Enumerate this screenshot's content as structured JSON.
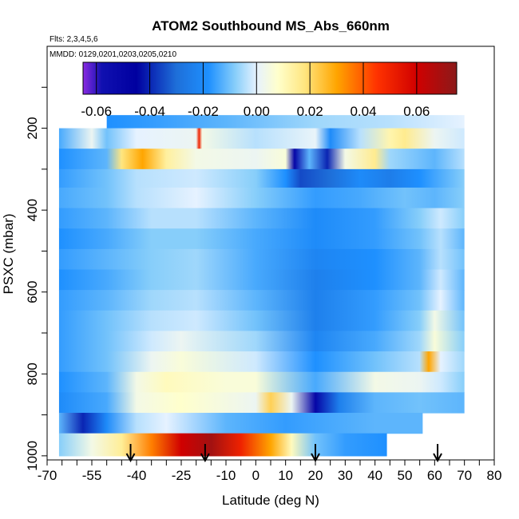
{
  "chart_data": {
    "type": "heatmap",
    "title": "ATOM2 Southbound MS_Abs_660nm",
    "flights_label": "Flts: 2,3,4,5,6",
    "dates_label": "MMDD: 0129,0201,0203,0205,0210",
    "xlabel": "Latitude (deg N)",
    "ylabel": "PSXC (mbar)",
    "xlim": [
      -70,
      80
    ],
    "ylim": [
      1010,
      0
    ],
    "x_ticks": [
      -70,
      -55,
      -40,
      -25,
      -10,
      0,
      10,
      20,
      30,
      40,
      50,
      60,
      70,
      80
    ],
    "x_tick_labels": [
      "-70",
      "-55",
      "-40",
      "-25",
      "-10",
      "0",
      "10",
      "20",
      "30",
      "40",
      "50",
      "60",
      "70",
      "80"
    ],
    "y_ticks": [
      200,
      400,
      600,
      800,
      1000
    ],
    "y_tick_labels": [
      "200",
      "400",
      "600",
      "800",
      "1000"
    ],
    "colorbar": {
      "range": [
        -0.065,
        0.075
      ],
      "ticks": [
        -0.06,
        -0.04,
        -0.02,
        0.0,
        0.02,
        0.04,
        0.06
      ],
      "tick_labels": [
        "-0.06",
        "-0.04",
        "-0.02",
        "0.00",
        "0.02",
        "0.04",
        "0.06"
      ],
      "stops": [
        {
          "v": -0.065,
          "c": "#8a2be2"
        },
        {
          "v": -0.058,
          "c": "#1010b0"
        },
        {
          "v": -0.045,
          "c": "#0000a0"
        },
        {
          "v": -0.03,
          "c": "#1e6fd9"
        },
        {
          "v": -0.018,
          "c": "#1e90ff"
        },
        {
          "v": -0.008,
          "c": "#87cefa"
        },
        {
          "v": 0.0,
          "c": "#e6f2ff"
        },
        {
          "v": 0.008,
          "c": "#ffffcc"
        },
        {
          "v": 0.018,
          "c": "#ffe680"
        },
        {
          "v": 0.03,
          "c": "#ffa500"
        },
        {
          "v": 0.045,
          "c": "#ff3300"
        },
        {
          "v": 0.06,
          "c": "#d00000"
        },
        {
          "v": 0.075,
          "c": "#8b1a1a"
        }
      ]
    },
    "rows": [
      {
        "p_top": 168,
        "p_bot": 200,
        "x0": -50,
        "x1": 70,
        "seg": [
          [
            -50,
            -0.018
          ],
          [
            -35,
            -0.016
          ],
          [
            -10,
            -0.012
          ],
          [
            20,
            -0.006
          ],
          [
            45,
            -0.004
          ],
          [
            70,
            0.0
          ]
        ]
      },
      {
        "p_top": 200,
        "p_bot": 250,
        "x0": -66,
        "x1": 70,
        "seg": [
          [
            -66,
            -0.014
          ],
          [
            -55,
            0.002
          ],
          [
            -50,
            -0.01
          ],
          [
            -40,
            0.0
          ],
          [
            -20,
            0.002
          ],
          [
            -19,
            0.05
          ],
          [
            -18,
            0.004
          ],
          [
            0,
            -0.004
          ],
          [
            20,
            0.001
          ],
          [
            25,
            -0.02
          ],
          [
            35,
            -0.004
          ],
          [
            45,
            0.012
          ],
          [
            50,
            0.016
          ],
          [
            60,
            0.002
          ],
          [
            70,
            -0.002
          ]
        ]
      },
      {
        "p_top": 250,
        "p_bot": 300,
        "x0": -66,
        "x1": 70,
        "seg": [
          [
            -66,
            -0.018
          ],
          [
            -50,
            -0.012
          ],
          [
            -45,
            0.018
          ],
          [
            -38,
            0.03
          ],
          [
            -30,
            0.014
          ],
          [
            -20,
            0.004
          ],
          [
            0,
            0.002
          ],
          [
            10,
            0.006
          ],
          [
            13,
            -0.05
          ],
          [
            18,
            -0.012
          ],
          [
            24,
            -0.04
          ],
          [
            30,
            0.004
          ],
          [
            40,
            0.016
          ],
          [
            45,
            -0.006
          ],
          [
            60,
            -0.012
          ],
          [
            70,
            -0.004
          ]
        ]
      },
      {
        "p_top": 300,
        "p_bot": 345,
        "x0": -66,
        "x1": 70,
        "seg": [
          [
            -66,
            -0.016
          ],
          [
            -50,
            -0.01
          ],
          [
            -40,
            -0.004
          ],
          [
            -20,
            -0.002
          ],
          [
            0,
            -0.008
          ],
          [
            10,
            -0.018
          ],
          [
            15,
            -0.035
          ],
          [
            25,
            -0.03
          ],
          [
            35,
            -0.02
          ],
          [
            45,
            -0.025
          ],
          [
            55,
            -0.018
          ],
          [
            70,
            -0.008
          ]
        ]
      },
      {
        "p_top": 345,
        "p_bot": 395,
        "x0": -66,
        "x1": 70,
        "seg": [
          [
            -66,
            -0.014
          ],
          [
            -50,
            -0.01
          ],
          [
            -40,
            -0.004
          ],
          [
            -20,
            0.0
          ],
          [
            0,
            -0.008
          ],
          [
            20,
            -0.016
          ],
          [
            35,
            -0.014
          ],
          [
            50,
            -0.01
          ],
          [
            60,
            -0.012
          ],
          [
            70,
            -0.008
          ]
        ]
      },
      {
        "p_top": 395,
        "p_bot": 445,
        "x0": -66,
        "x1": 70,
        "seg": [
          [
            -66,
            -0.016
          ],
          [
            -50,
            -0.012
          ],
          [
            -35,
            -0.004
          ],
          [
            -20,
            -0.004
          ],
          [
            0,
            -0.012
          ],
          [
            20,
            -0.02
          ],
          [
            40,
            -0.016
          ],
          [
            55,
            -0.008
          ],
          [
            62,
            -0.002
          ],
          [
            70,
            -0.008
          ]
        ]
      },
      {
        "p_top": 445,
        "p_bot": 495,
        "x0": -66,
        "x1": 70,
        "seg": [
          [
            -66,
            -0.018
          ],
          [
            -50,
            -0.014
          ],
          [
            -35,
            -0.008
          ],
          [
            -20,
            -0.008
          ],
          [
            0,
            -0.014
          ],
          [
            20,
            -0.02
          ],
          [
            40,
            -0.016
          ],
          [
            55,
            -0.01
          ],
          [
            62,
            -0.004
          ],
          [
            70,
            -0.012
          ]
        ]
      },
      {
        "p_top": 495,
        "p_bot": 545,
        "x0": -66,
        "x1": 70,
        "seg": [
          [
            -66,
            -0.016
          ],
          [
            -50,
            -0.012
          ],
          [
            -35,
            -0.008
          ],
          [
            -20,
            -0.006
          ],
          [
            0,
            -0.014
          ],
          [
            20,
            -0.022
          ],
          [
            40,
            -0.018
          ],
          [
            55,
            -0.012
          ],
          [
            62,
            -0.004
          ],
          [
            70,
            -0.01
          ]
        ]
      },
      {
        "p_top": 545,
        "p_bot": 595,
        "x0": -66,
        "x1": 70,
        "seg": [
          [
            -66,
            -0.018
          ],
          [
            -50,
            -0.014
          ],
          [
            -35,
            -0.008
          ],
          [
            -20,
            -0.006
          ],
          [
            0,
            -0.014
          ],
          [
            20,
            -0.024
          ],
          [
            40,
            -0.018
          ],
          [
            55,
            -0.012
          ],
          [
            62,
            -0.002
          ],
          [
            70,
            -0.012
          ]
        ]
      },
      {
        "p_top": 595,
        "p_bot": 645,
        "x0": -66,
        "x1": 70,
        "seg": [
          [
            -66,
            -0.016
          ],
          [
            -50,
            -0.012
          ],
          [
            -35,
            -0.006
          ],
          [
            -20,
            -0.004
          ],
          [
            0,
            -0.012
          ],
          [
            20,
            -0.024
          ],
          [
            40,
            -0.016
          ],
          [
            55,
            -0.01
          ],
          [
            62,
            0.0
          ],
          [
            70,
            -0.012
          ]
        ]
      },
      {
        "p_top": 645,
        "p_bot": 695,
        "x0": -66,
        "x1": 70,
        "seg": [
          [
            -66,
            -0.016
          ],
          [
            -50,
            -0.01
          ],
          [
            -35,
            -0.004
          ],
          [
            -20,
            -0.002
          ],
          [
            0,
            -0.01
          ],
          [
            20,
            -0.024
          ],
          [
            40,
            -0.016
          ],
          [
            55,
            -0.008
          ],
          [
            60,
            0.004
          ],
          [
            70,
            -0.01
          ]
        ]
      },
      {
        "p_top": 695,
        "p_bot": 745,
        "x0": -66,
        "x1": 70,
        "seg": [
          [
            -66,
            -0.016
          ],
          [
            -50,
            -0.01
          ],
          [
            -35,
            -0.002
          ],
          [
            -25,
            0.002
          ],
          [
            0,
            -0.006
          ],
          [
            20,
            -0.022
          ],
          [
            40,
            -0.014
          ],
          [
            55,
            -0.006
          ],
          [
            60,
            0.006
          ],
          [
            70,
            -0.008
          ]
        ]
      },
      {
        "p_top": 745,
        "p_bot": 795,
        "x0": -66,
        "x1": 70,
        "seg": [
          [
            -66,
            -0.016
          ],
          [
            -50,
            -0.01
          ],
          [
            -35,
            0.002
          ],
          [
            -25,
            0.006
          ],
          [
            0,
            -0.002
          ],
          [
            20,
            -0.018
          ],
          [
            40,
            -0.01
          ],
          [
            55,
            -0.004
          ],
          [
            58,
            0.03
          ],
          [
            62,
            0.0
          ],
          [
            70,
            -0.006
          ]
        ]
      },
      {
        "p_top": 795,
        "p_bot": 845,
        "x0": -66,
        "x1": 70,
        "seg": [
          [
            -66,
            -0.018
          ],
          [
            -50,
            -0.012
          ],
          [
            -40,
            0.004
          ],
          [
            -30,
            0.01
          ],
          [
            -10,
            0.006
          ],
          [
            0,
            0.006
          ],
          [
            20,
            -0.014
          ],
          [
            40,
            0.004
          ],
          [
            55,
            0.002
          ],
          [
            62,
            -0.002
          ],
          [
            70,
            -0.008
          ]
        ]
      },
      {
        "p_top": 845,
        "p_bot": 895,
        "x0": -66,
        "x1": 70,
        "seg": [
          [
            -66,
            -0.02
          ],
          [
            -50,
            -0.014
          ],
          [
            -40,
            0.004
          ],
          [
            -25,
            0.008
          ],
          [
            0,
            0.002
          ],
          [
            5,
            0.022
          ],
          [
            12,
            0.002
          ],
          [
            20,
            -0.05
          ],
          [
            28,
            -0.024
          ],
          [
            40,
            -0.012
          ],
          [
            55,
            -0.01
          ],
          [
            70,
            -0.012
          ]
        ]
      },
      {
        "p_top": 895,
        "p_bot": 945,
        "x0": -66,
        "x1": 56,
        "seg": [
          [
            -66,
            -0.012
          ],
          [
            -58,
            -0.04
          ],
          [
            -50,
            -0.02
          ],
          [
            -40,
            -0.004
          ],
          [
            -30,
            0.0
          ],
          [
            -10,
            -0.012
          ],
          [
            10,
            -0.016
          ],
          [
            25,
            -0.014
          ],
          [
            40,
            -0.012
          ],
          [
            56,
            -0.012
          ]
        ]
      },
      {
        "p_top": 945,
        "p_bot": 1000,
        "x0": -66,
        "x1": 44,
        "seg": [
          [
            -66,
            -0.008
          ],
          [
            -55,
            0.004
          ],
          [
            -45,
            0.015
          ],
          [
            -35,
            0.035
          ],
          [
            -25,
            0.06
          ],
          [
            -15,
            0.07
          ],
          [
            -5,
            0.05
          ],
          [
            5,
            0.03
          ],
          [
            12,
            0.01
          ],
          [
            20,
            -0.01
          ],
          [
            30,
            -0.016
          ],
          [
            44,
            -0.018
          ]
        ]
      }
    ],
    "flight_markers_lat": [
      -42,
      -17,
      20,
      61
    ]
  }
}
